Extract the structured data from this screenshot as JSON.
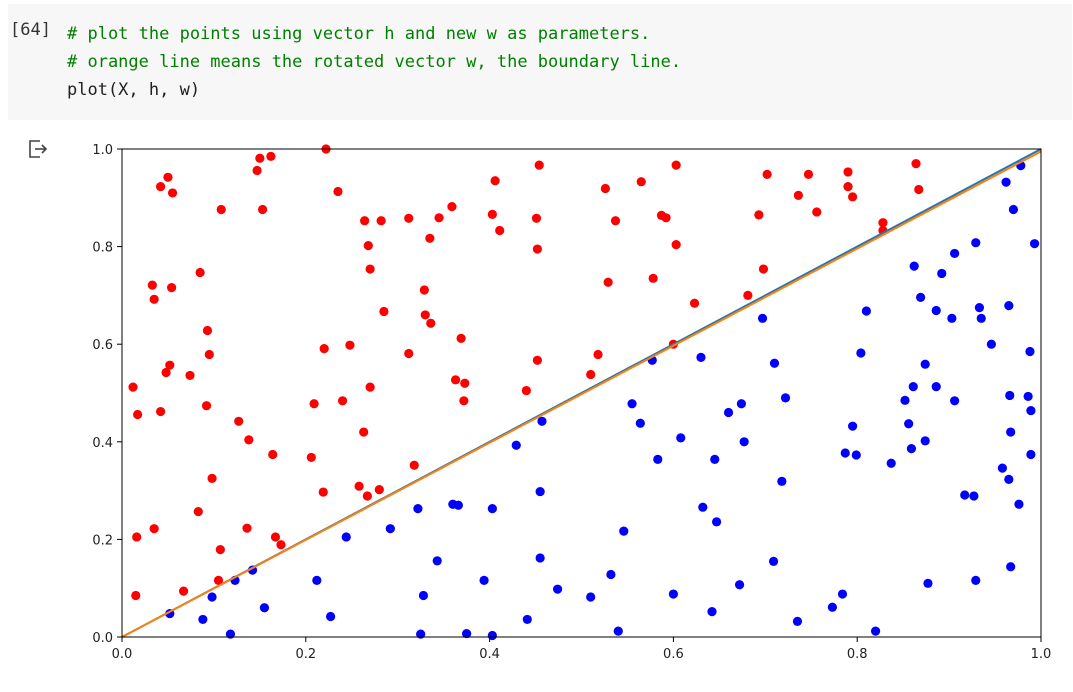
{
  "cell": {
    "execution_count": "[64]",
    "code_lines": [
      "# plot the points using vector h and new w as parameters.",
      "# orange line means the rotated vector w, the boundary line.",
      "plot(X, h, w)"
    ]
  },
  "output": {
    "icon": "output-redirect-icon"
  },
  "chart_data": {
    "type": "scatter",
    "xlim": [
      0,
      1
    ],
    "ylim": [
      0,
      1
    ],
    "x_ticks": [
      "0.0",
      "0.2",
      "0.4",
      "0.6",
      "0.8",
      "1.0"
    ],
    "y_ticks": [
      "0.0",
      "0.2",
      "0.4",
      "0.6",
      "0.8",
      "1.0"
    ],
    "grid": false,
    "colors": {
      "red_points": "#ff0000",
      "blue_points": "#0000ff",
      "vector_h": "#1f77b4",
      "vector_w": "#ff7f0e"
    },
    "lines": [
      {
        "color": "#1f77b4",
        "x": [
          0,
          1
        ],
        "y": [
          0,
          1
        ]
      },
      {
        "color": "#ff7f0e",
        "x": [
          0,
          1
        ],
        "y": [
          0,
          0.995
        ]
      }
    ],
    "series": [
      {
        "color": "#ff0000",
        "points": [
          [
            0.016,
            0.205
          ],
          [
            0.015,
            0.085
          ],
          [
            0.012,
            0.512
          ],
          [
            0.017,
            0.456
          ],
          [
            0.035,
            0.222
          ],
          [
            0.033,
            0.721
          ],
          [
            0.035,
            0.692
          ],
          [
            0.042,
            0.923
          ],
          [
            0.05,
            0.942
          ],
          [
            0.055,
            0.91
          ],
          [
            0.042,
            0.462
          ],
          [
            0.048,
            0.542
          ],
          [
            0.052,
            0.557
          ],
          [
            0.054,
            0.716
          ],
          [
            0.067,
            0.094
          ],
          [
            0.074,
            0.536
          ],
          [
            0.085,
            0.747
          ],
          [
            0.083,
            0.257
          ],
          [
            0.092,
            0.474
          ],
          [
            0.093,
            0.628
          ],
          [
            0.095,
            0.579
          ],
          [
            0.098,
            0.325
          ],
          [
            0.105,
            0.116
          ],
          [
            0.107,
            0.179
          ],
          [
            0.108,
            0.876
          ],
          [
            0.127,
            0.442
          ],
          [
            0.136,
            0.223
          ],
          [
            0.138,
            0.404
          ],
          [
            0.147,
            0.956
          ],
          [
            0.15,
            0.981
          ],
          [
            0.153,
            0.876
          ],
          [
            0.162,
            0.985
          ],
          [
            0.164,
            0.374
          ],
          [
            0.167,
            0.205
          ],
          [
            0.173,
            0.189
          ],
          [
            0.206,
            0.368
          ],
          [
            0.209,
            0.478
          ],
          [
            0.219,
            0.297
          ],
          [
            0.22,
            0.591
          ],
          [
            0.222,
            1.0
          ],
          [
            0.235,
            0.913
          ],
          [
            0.24,
            0.484
          ],
          [
            0.248,
            0.598
          ],
          [
            0.258,
            0.309
          ],
          [
            0.263,
            0.42
          ],
          [
            0.264,
            0.853
          ],
          [
            0.267,
            0.289
          ],
          [
            0.268,
            0.802
          ],
          [
            0.27,
            0.754
          ],
          [
            0.27,
            0.512
          ],
          [
            0.28,
            0.302
          ],
          [
            0.282,
            0.853
          ],
          [
            0.285,
            0.667
          ],
          [
            0.312,
            0.581
          ],
          [
            0.312,
            0.858
          ],
          [
            0.318,
            0.352
          ],
          [
            0.329,
            0.711
          ],
          [
            0.33,
            0.66
          ],
          [
            0.335,
            0.817
          ],
          [
            0.336,
            0.643
          ],
          [
            0.345,
            0.859
          ],
          [
            0.359,
            0.882
          ],
          [
            0.363,
            0.527
          ],
          [
            0.369,
            0.612
          ],
          [
            0.373,
            0.52
          ],
          [
            0.372,
            0.484
          ],
          [
            0.403,
            0.866
          ],
          [
            0.406,
            0.935
          ],
          [
            0.411,
            0.833
          ],
          [
            0.44,
            0.505
          ],
          [
            0.451,
            0.858
          ],
          [
            0.452,
            0.795
          ],
          [
            0.452,
            0.567
          ],
          [
            0.454,
            0.967
          ],
          [
            0.51,
            0.538
          ],
          [
            0.518,
            0.579
          ],
          [
            0.526,
            0.919
          ],
          [
            0.529,
            0.727
          ],
          [
            0.537,
            0.853
          ],
          [
            0.565,
            0.933
          ],
          [
            0.578,
            0.735
          ],
          [
            0.587,
            0.864
          ],
          [
            0.592,
            0.859
          ],
          [
            0.6,
            0.6
          ],
          [
            0.603,
            0.804
          ],
          [
            0.603,
            0.967
          ],
          [
            0.623,
            0.684
          ],
          [
            0.681,
            0.7
          ],
          [
            0.693,
            0.865
          ],
          [
            0.698,
            0.754
          ],
          [
            0.702,
            0.948
          ],
          [
            0.736,
            0.905
          ],
          [
            0.747,
            0.948
          ],
          [
            0.756,
            0.871
          ],
          [
            0.79,
            0.923
          ],
          [
            0.79,
            0.953
          ],
          [
            0.795,
            0.902
          ],
          [
            0.828,
            0.849
          ],
          [
            0.828,
            0.833
          ],
          [
            0.864,
            0.97
          ],
          [
            0.867,
            0.917
          ]
        ]
      },
      {
        "color": "#0000ff",
        "points": [
          [
            0.052,
            0.048
          ],
          [
            0.088,
            0.036
          ],
          [
            0.098,
            0.082
          ],
          [
            0.118,
            0.006
          ],
          [
            0.123,
            0.116
          ],
          [
            0.142,
            0.137
          ],
          [
            0.155,
            0.06
          ],
          [
            0.212,
            0.116
          ],
          [
            0.227,
            0.042
          ],
          [
            0.244,
            0.205
          ],
          [
            0.292,
            0.222
          ],
          [
            0.322,
            0.263
          ],
          [
            0.325,
            0.006
          ],
          [
            0.328,
            0.085
          ],
          [
            0.343,
            0.156
          ],
          [
            0.36,
            0.272
          ],
          [
            0.366,
            0.27
          ],
          [
            0.375,
            0.007
          ],
          [
            0.394,
            0.116
          ],
          [
            0.403,
            0.263
          ],
          [
            0.403,
            0.003
          ],
          [
            0.429,
            0.393
          ],
          [
            0.441,
            0.036
          ],
          [
            0.455,
            0.298
          ],
          [
            0.455,
            0.162
          ],
          [
            0.457,
            0.442
          ],
          [
            0.474,
            0.098
          ],
          [
            0.51,
            0.082
          ],
          [
            0.532,
            0.128
          ],
          [
            0.54,
            0.012
          ],
          [
            0.546,
            0.217
          ],
          [
            0.555,
            0.478
          ],
          [
            0.564,
            0.438
          ],
          [
            0.577,
            0.567
          ],
          [
            0.583,
            0.364
          ],
          [
            0.6,
            0.088
          ],
          [
            0.608,
            0.408
          ],
          [
            0.63,
            0.573
          ],
          [
            0.632,
            0.266
          ],
          [
            0.642,
            0.052
          ],
          [
            0.645,
            0.364
          ],
          [
            0.647,
            0.236
          ],
          [
            0.66,
            0.46
          ],
          [
            0.672,
            0.107
          ],
          [
            0.674,
            0.478
          ],
          [
            0.677,
            0.4
          ],
          [
            0.697,
            0.653
          ],
          [
            0.709,
            0.155
          ],
          [
            0.71,
            0.561
          ],
          [
            0.718,
            0.319
          ],
          [
            0.722,
            0.49
          ],
          [
            0.735,
            0.032
          ],
          [
            0.773,
            0.061
          ],
          [
            0.784,
            0.088
          ],
          [
            0.787,
            0.377
          ],
          [
            0.795,
            0.432
          ],
          [
            0.799,
            0.373
          ],
          [
            0.804,
            0.582
          ],
          [
            0.81,
            0.668
          ],
          [
            0.82,
            0.012
          ],
          [
            0.837,
            0.356
          ],
          [
            0.852,
            0.485
          ],
          [
            0.856,
            0.437
          ],
          [
            0.859,
            0.386
          ],
          [
            0.861,
            0.513
          ],
          [
            0.862,
            0.76
          ],
          [
            0.869,
            0.696
          ],
          [
            0.874,
            0.559
          ],
          [
            0.874,
            0.402
          ],
          [
            0.877,
            0.11
          ],
          [
            0.886,
            0.669
          ],
          [
            0.886,
            0.513
          ],
          [
            0.892,
            0.745
          ],
          [
            0.903,
            0.653
          ],
          [
            0.906,
            0.786
          ],
          [
            0.906,
            0.484
          ],
          [
            0.917,
            0.291
          ],
          [
            0.927,
            0.289
          ],
          [
            0.929,
            0.808
          ],
          [
            0.929,
            0.116
          ],
          [
            0.933,
            0.675
          ],
          [
            0.935,
            0.653
          ],
          [
            0.946,
            0.6
          ],
          [
            0.958,
            0.346
          ],
          [
            0.962,
            0.932
          ],
          [
            0.965,
            0.323
          ],
          [
            0.965,
            0.679
          ],
          [
            0.966,
            0.495
          ],
          [
            0.967,
            0.42
          ],
          [
            0.967,
            0.144
          ],
          [
            0.97,
            0.876
          ],
          [
            0.976,
            0.272
          ],
          [
            0.978,
            0.966
          ],
          [
            0.986,
            0.493
          ],
          [
            0.989,
            0.464
          ],
          [
            0.989,
            0.374
          ],
          [
            0.988,
            0.585
          ],
          [
            0.993,
            0.806
          ]
        ]
      }
    ]
  }
}
